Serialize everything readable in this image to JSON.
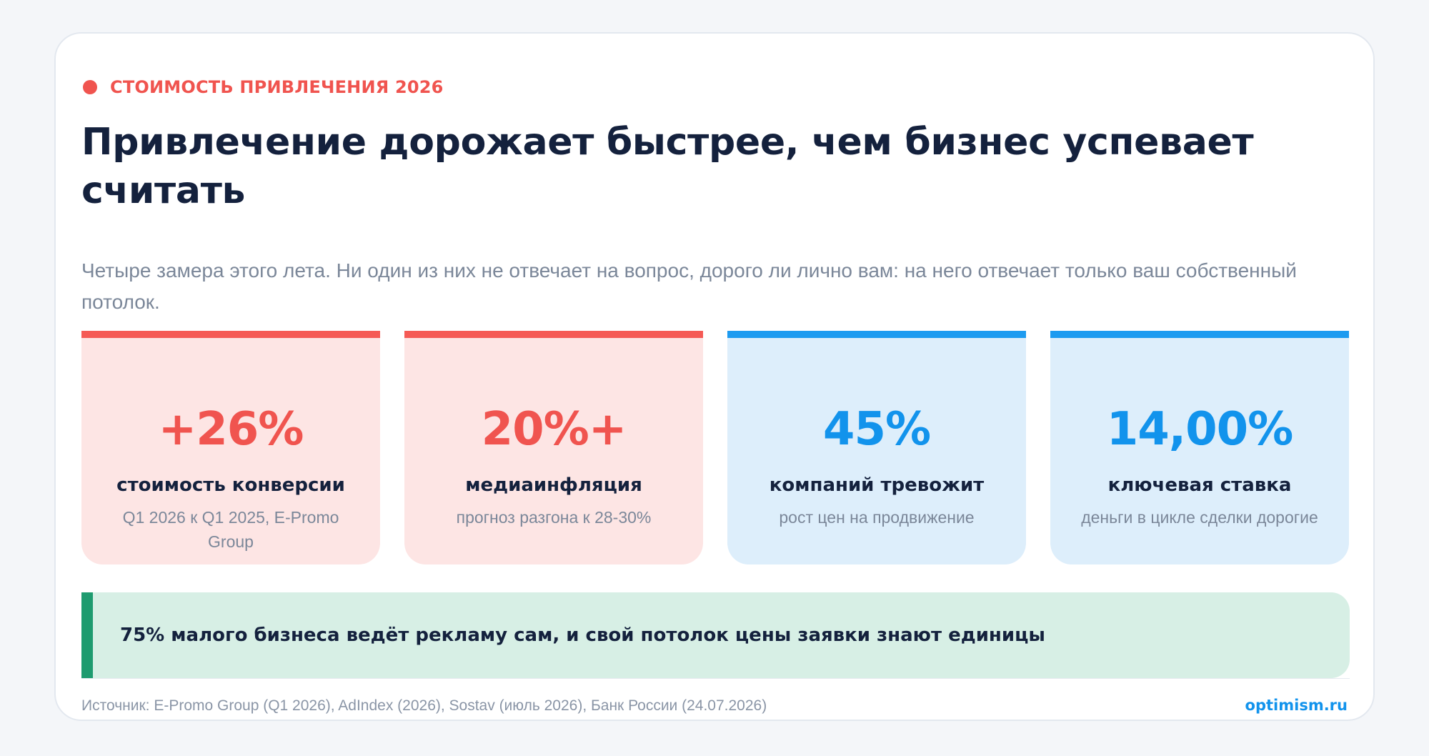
{
  "eyebrow": {
    "text": "СТОИМОСТЬ ПРИВЛЕЧЕНИЯ 2026",
    "color": "#f0544f"
  },
  "headline": "Привлечение дорожает быстрее, чем бизнес успевает считать",
  "subtitle": "Четыре замера этого лета. Ни один из них не отвечает на вопрос, дорого ли лично вам: на него отвечает только ваш собственный потолок.",
  "stats": [
    {
      "value": "+26%",
      "label": "стоимость конверсии",
      "note": "Q1 2026 к Q1 2025, E-Promo Group",
      "accent": "#f55a55"
    },
    {
      "value": "20%+",
      "label": "медиаинфляция",
      "note": "прогноз разгона к 28-30%",
      "accent": "#f55a55"
    },
    {
      "value": "45%",
      "label": "компаний тревожит",
      "note": "рост цен на продвижение",
      "accent": "#1d9bf0"
    },
    {
      "value": "14,00%",
      "label": "ключевая ставка",
      "note": "деньги в цикле сделки дорогие",
      "accent": "#1d9bf0"
    }
  ],
  "callout": {
    "text": "75% малого бизнеса ведёт рекламу сам, и свой потолок цены заявки знают единицы",
    "accent": "#1e9b6f"
  },
  "footer": {
    "source": "Источник: E-Promo Group (Q1 2026), AdIndex (2026), Sostav (июль 2026), Банк России (24.07.2026)",
    "brand": "optimism.ru"
  }
}
